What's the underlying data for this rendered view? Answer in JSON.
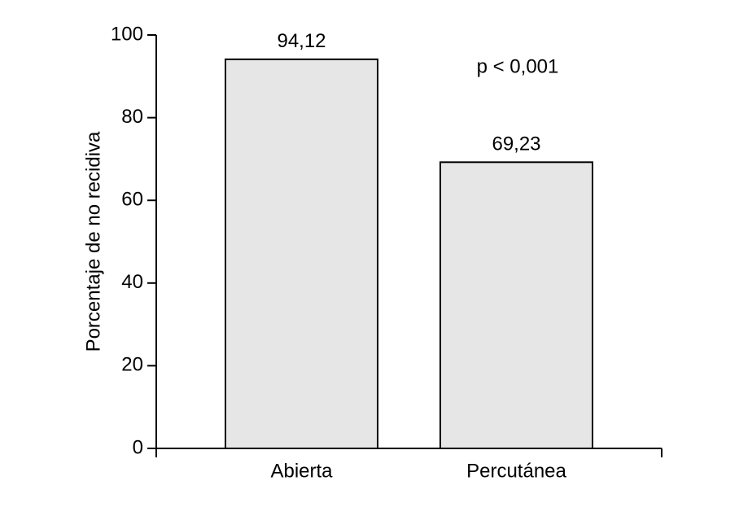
{
  "chart_data": {
    "type": "bar",
    "y_label": "Porcentaje de no recidiva",
    "annotation": "p < 0,001",
    "categories": [
      "Abierta",
      "Percutánea"
    ],
    "values": [
      94.12,
      69.23
    ],
    "value_labels": [
      "94,12",
      "69,23"
    ],
    "color": "#e6e6e6",
    "ylim": [
      0,
      100
    ],
    "yticks": [
      0,
      20,
      40,
      60,
      80,
      100
    ],
    "grid": false
  }
}
